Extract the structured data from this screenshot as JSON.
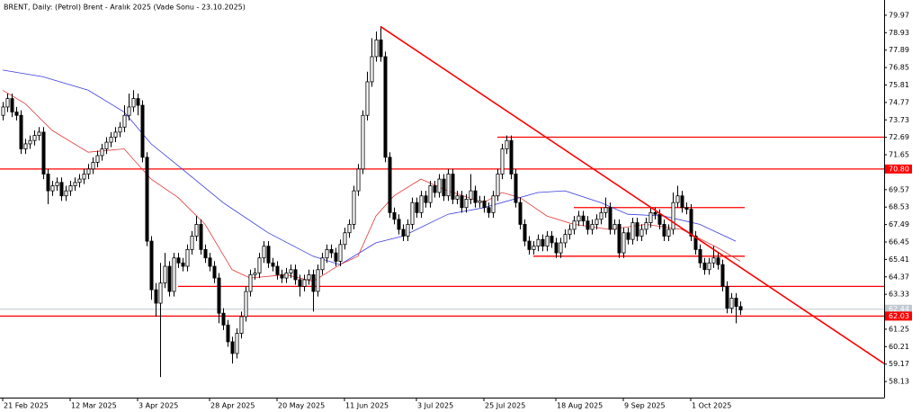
{
  "chart_data": {
    "type": "candlestick",
    "title": "BRENT, Daily:  (Petrol) Brent - Aralık 2025 (Vade Sonu - 23.10.2025)",
    "xlim": [
      -0.6,
      196
    ],
    "ylim": [
      57.17,
      80.61
    ],
    "xticks": [
      {
        "value": 0,
        "label": "21 Feb 2025"
      },
      {
        "value": 15,
        "label": "12 Mar 2025"
      },
      {
        "value": 30,
        "label": "3 Apr 2025"
      },
      {
        "value": 46,
        "label": "28 Apr 2025"
      },
      {
        "value": 61,
        "label": "20 May 2025"
      },
      {
        "value": 76,
        "label": "11 Jun 2025"
      },
      {
        "value": 92,
        "label": "3 Jul 2025"
      },
      {
        "value": 107,
        "label": "25 Jul 2025"
      },
      {
        "value": 123,
        "label": "18 Aug 2025"
      },
      {
        "value": 138,
        "label": "9 Sep 2025"
      },
      {
        "value": 153,
        "label": "1 Oct 2025"
      }
    ],
    "yticks": [
      79.97,
      78.93,
      77.89,
      76.85,
      75.81,
      74.77,
      73.73,
      72.69,
      71.65,
      69.57,
      68.53,
      67.49,
      66.45,
      65.41,
      64.37,
      63.33,
      61.25,
      60.21,
      59.17,
      58.13
    ],
    "up_color": "#ffffff",
    "down_color": "#000000",
    "ohlc": [
      [
        74.0,
        74.8,
        73.7,
        74.5
      ],
      [
        74.5,
        75.3,
        74.2,
        75.0
      ],
      [
        75.0,
        75.3,
        73.9,
        74.2
      ],
      [
        74.2,
        74.5,
        73.7,
        74.0
      ],
      [
        74.0,
        74.3,
        71.7,
        72.0
      ],
      [
        72.0,
        72.6,
        71.7,
        72.3
      ],
      [
        72.3,
        72.8,
        72.0,
        72.5
      ],
      [
        72.5,
        73.1,
        72.2,
        72.8
      ],
      [
        72.8,
        73.3,
        72.5,
        73.0
      ],
      [
        73.0,
        73.3,
        70.2,
        70.5
      ],
      [
        70.5,
        70.8,
        68.7,
        69.5
      ],
      [
        69.5,
        70.1,
        69.2,
        69.8
      ],
      [
        69.8,
        70.3,
        69.5,
        70.0
      ],
      [
        70.0,
        70.3,
        68.9,
        69.2
      ],
      [
        69.2,
        69.8,
        68.9,
        69.5
      ],
      [
        69.5,
        70.1,
        69.2,
        69.8
      ],
      [
        69.8,
        70.3,
        69.5,
        70.0
      ],
      [
        70.0,
        70.5,
        69.7,
        70.2
      ],
      [
        70.2,
        70.8,
        69.9,
        70.5
      ],
      [
        70.5,
        71.1,
        70.2,
        70.8
      ],
      [
        70.8,
        71.5,
        70.5,
        71.2
      ],
      [
        71.2,
        71.9,
        70.9,
        71.6
      ],
      [
        71.6,
        72.3,
        71.3,
        72.0
      ],
      [
        72.0,
        72.7,
        71.7,
        72.4
      ],
      [
        72.4,
        73.0,
        72.1,
        72.7
      ],
      [
        72.7,
        73.3,
        72.4,
        73.0
      ],
      [
        73.0,
        73.6,
        72.7,
        73.3
      ],
      [
        73.3,
        74.6,
        73.0,
        74.0
      ],
      [
        74.0,
        75.3,
        73.7,
        74.5
      ],
      [
        74.5,
        75.5,
        74.2,
        75.0
      ],
      [
        75.0,
        75.3,
        74.0,
        74.6
      ],
      [
        74.6,
        74.9,
        71.2,
        71.5
      ],
      [
        71.5,
        71.8,
        66.2,
        66.5
      ],
      [
        66.5,
        66.8,
        63.0,
        63.6
      ],
      [
        63.6,
        64.0,
        62.0,
        62.8
      ],
      [
        62.8,
        65.2,
        58.4,
        64.0
      ],
      [
        64.0,
        65.8,
        63.7,
        65.0
      ],
      [
        65.0,
        65.3,
        63.2,
        63.5
      ],
      [
        63.5,
        65.8,
        63.2,
        65.5
      ],
      [
        65.5,
        65.8,
        64.9,
        65.2
      ],
      [
        65.2,
        65.5,
        64.7,
        65.0
      ],
      [
        65.0,
        66.3,
        64.7,
        66.0
      ],
      [
        66.0,
        67.1,
        65.7,
        66.8
      ],
      [
        66.8,
        68.0,
        66.5,
        67.5
      ],
      [
        67.5,
        67.8,
        65.7,
        66.0
      ],
      [
        66.0,
        66.3,
        65.2,
        65.5
      ],
      [
        65.5,
        65.8,
        64.7,
        65.0
      ],
      [
        65.0,
        65.3,
        64.0,
        64.3
      ],
      [
        64.3,
        64.6,
        61.6,
        62.2
      ],
      [
        62.2,
        62.5,
        61.2,
        61.5
      ],
      [
        61.5,
        61.8,
        60.2,
        60.5
      ],
      [
        60.5,
        60.8,
        59.2,
        59.8
      ],
      [
        59.8,
        61.3,
        59.5,
        61.0
      ],
      [
        61.0,
        62.3,
        60.7,
        62.0
      ],
      [
        62.0,
        63.8,
        61.7,
        63.5
      ],
      [
        63.5,
        64.8,
        63.2,
        64.5
      ],
      [
        64.5,
        64.9,
        64.2,
        64.6
      ],
      [
        64.6,
        65.8,
        64.3,
        65.5
      ],
      [
        65.5,
        66.5,
        65.2,
        66.2
      ],
      [
        66.2,
        66.5,
        64.9,
        65.2
      ],
      [
        65.2,
        65.5,
        64.7,
        65.0
      ],
      [
        65.0,
        65.3,
        64.2,
        64.5
      ],
      [
        64.5,
        64.8,
        64.0,
        64.3
      ],
      [
        64.3,
        64.9,
        64.0,
        64.6
      ],
      [
        64.6,
        65.1,
        64.3,
        64.8
      ],
      [
        64.8,
        65.1,
        63.9,
        64.2
      ],
      [
        64.2,
        64.5,
        63.2,
        63.8
      ],
      [
        63.8,
        64.5,
        63.5,
        64.2
      ],
      [
        64.2,
        64.8,
        63.9,
        64.5
      ],
      [
        64.5,
        64.8,
        62.3,
        63.5
      ],
      [
        63.5,
        65.1,
        63.2,
        64.8
      ],
      [
        64.8,
        65.8,
        64.5,
        65.5
      ],
      [
        65.5,
        66.3,
        65.2,
        66.0
      ],
      [
        66.0,
        66.3,
        65.5,
        65.8
      ],
      [
        65.8,
        66.1,
        65.0,
        65.3
      ],
      [
        65.3,
        66.6,
        65.0,
        66.3
      ],
      [
        66.3,
        67.3,
        66.0,
        67.0
      ],
      [
        67.0,
        67.8,
        66.7,
        67.5
      ],
      [
        67.5,
        69.8,
        67.2,
        69.5
      ],
      [
        69.5,
        71.1,
        69.2,
        70.8
      ],
      [
        70.8,
        74.3,
        70.5,
        74.0
      ],
      [
        74.0,
        76.6,
        73.7,
        76.0
      ],
      [
        76.0,
        78.6,
        75.7,
        77.5
      ],
      [
        77.5,
        79.0,
        77.2,
        78.5
      ],
      [
        78.5,
        79.3,
        77.2,
        77.5
      ],
      [
        77.5,
        77.8,
        71.2,
        71.5
      ],
      [
        71.5,
        71.8,
        67.9,
        68.2
      ],
      [
        68.2,
        68.5,
        67.5,
        67.8
      ],
      [
        67.8,
        68.1,
        66.9,
        67.2
      ],
      [
        67.2,
        67.5,
        66.5,
        66.8
      ],
      [
        66.8,
        67.8,
        66.5,
        67.5
      ],
      [
        67.5,
        69.1,
        67.2,
        68.8
      ],
      [
        68.8,
        69.1,
        67.9,
        68.2
      ],
      [
        68.2,
        69.5,
        67.9,
        69.2
      ],
      [
        69.2,
        69.5,
        68.5,
        68.8
      ],
      [
        68.8,
        70.1,
        68.5,
        69.8
      ],
      [
        69.8,
        70.1,
        69.1,
        69.4
      ],
      [
        69.4,
        70.5,
        69.1,
        70.2
      ],
      [
        70.2,
        70.5,
        68.9,
        69.2
      ],
      [
        69.2,
        70.8,
        68.9,
        70.5
      ],
      [
        70.5,
        70.8,
        68.7,
        69.0
      ],
      [
        69.0,
        69.5,
        68.7,
        69.2
      ],
      [
        69.2,
        69.5,
        68.2,
        68.5
      ],
      [
        68.5,
        69.3,
        68.2,
        69.0
      ],
      [
        69.0,
        70.5,
        68.7,
        69.5
      ],
      [
        69.5,
        69.8,
        68.5,
        68.8
      ],
      [
        68.8,
        69.2,
        68.5,
        68.9
      ],
      [
        68.9,
        69.2,
        68.2,
        68.5
      ],
      [
        68.5,
        68.8,
        67.9,
        68.2
      ],
      [
        68.2,
        69.5,
        67.9,
        69.2
      ],
      [
        69.2,
        70.8,
        68.9,
        70.5
      ],
      [
        70.5,
        72.3,
        70.2,
        72.0
      ],
      [
        72.0,
        72.8,
        71.7,
        72.5
      ],
      [
        72.5,
        72.8,
        70.2,
        70.5
      ],
      [
        70.5,
        70.8,
        68.5,
        68.8
      ],
      [
        68.8,
        69.1,
        67.2,
        67.5
      ],
      [
        67.5,
        67.8,
        66.2,
        66.5
      ],
      [
        66.5,
        66.8,
        65.7,
        66.0
      ],
      [
        66.0,
        66.5,
        65.7,
        66.2
      ],
      [
        66.2,
        66.9,
        65.9,
        66.6
      ],
      [
        66.6,
        66.9,
        65.9,
        66.2
      ],
      [
        66.2,
        67.1,
        65.9,
        66.8
      ],
      [
        66.8,
        67.1,
        66.1,
        66.4
      ],
      [
        66.4,
        66.7,
        65.5,
        65.8
      ],
      [
        65.8,
        66.7,
        65.5,
        66.4
      ],
      [
        66.4,
        67.2,
        66.1,
        66.9
      ],
      [
        66.9,
        67.5,
        66.6,
        67.2
      ],
      [
        67.2,
        68.0,
        66.9,
        67.7
      ],
      [
        67.7,
        68.3,
        67.4,
        68.0
      ],
      [
        68.0,
        68.3,
        67.4,
        67.7
      ],
      [
        67.7,
        68.0,
        66.9,
        67.2
      ],
      [
        67.2,
        67.8,
        66.9,
        67.5
      ],
      [
        67.5,
        68.1,
        67.2,
        67.8
      ],
      [
        67.8,
        68.5,
        67.5,
        68.2
      ],
      [
        68.2,
        69.1,
        67.9,
        68.5
      ],
      [
        68.5,
        68.8,
        66.9,
        67.2
      ],
      [
        67.2,
        67.8,
        66.9,
        67.5
      ],
      [
        67.5,
        67.8,
        65.5,
        65.8
      ],
      [
        65.8,
        67.3,
        65.5,
        67.0
      ],
      [
        67.0,
        67.3,
        66.3,
        66.6
      ],
      [
        66.6,
        67.9,
        66.3,
        67.6
      ],
      [
        67.6,
        67.9,
        66.5,
        66.8
      ],
      [
        66.8,
        67.5,
        66.5,
        67.2
      ],
      [
        67.2,
        67.9,
        66.9,
        67.6
      ],
      [
        67.6,
        68.5,
        67.3,
        68.2
      ],
      [
        68.2,
        68.5,
        67.8,
        68.1
      ],
      [
        68.1,
        68.4,
        67.2,
        67.5
      ],
      [
        67.5,
        67.8,
        66.5,
        66.8
      ],
      [
        66.8,
        67.5,
        66.5,
        67.2
      ],
      [
        67.2,
        69.4,
        66.9,
        68.8
      ],
      [
        68.8,
        69.8,
        68.5,
        69.2
      ],
      [
        69.2,
        69.5,
        68.2,
        68.5
      ],
      [
        68.5,
        68.8,
        68.1,
        68.4
      ],
      [
        68.4,
        68.7,
        66.5,
        66.8
      ],
      [
        66.8,
        67.1,
        65.7,
        66.0
      ],
      [
        66.0,
        66.3,
        64.9,
        65.2
      ],
      [
        65.2,
        65.5,
        64.5,
        64.8
      ],
      [
        64.8,
        65.5,
        64.5,
        65.2
      ],
      [
        65.2,
        66.2,
        64.9,
        65.5
      ],
      [
        65.5,
        65.8,
        64.8,
        65.1
      ],
      [
        65.1,
        65.4,
        63.5,
        63.8
      ],
      [
        63.8,
        64.1,
        62.2,
        62.5
      ],
      [
        62.5,
        63.4,
        62.2,
        63.1
      ],
      [
        63.1,
        63.4,
        61.6,
        62.6
      ],
      [
        62.6,
        62.9,
        62.1,
        62.4
      ]
    ],
    "moving_averages": [
      {
        "color": "#3a3ae0",
        "x": [
          0,
          9,
          19,
          27,
          33,
          39,
          49,
          59,
          69,
          75,
          83,
          89,
          99,
          107,
          119,
          125,
          133,
          139,
          147,
          155,
          163
        ],
        "values": [
          76.7,
          76.3,
          75.5,
          74.2,
          72.3,
          71.0,
          68.8,
          67.0,
          65.6,
          65.1,
          66.4,
          66.8,
          68.1,
          68.5,
          69.4,
          69.5,
          68.8,
          68.1,
          68.0,
          67.5,
          66.5
        ]
      },
      {
        "color": "#e03a3a",
        "x": [
          0,
          5,
          11,
          19,
          27,
          33,
          39,
          45,
          51,
          55,
          63,
          69,
          75,
          79,
          83,
          87,
          93,
          99,
          107,
          111,
          115,
          121,
          127,
          135,
          143,
          151,
          159,
          164
        ],
        "values": [
          75.5,
          74.7,
          73.1,
          71.8,
          72.0,
          70.2,
          69.1,
          67.5,
          64.8,
          64.3,
          64.5,
          64.1,
          65.1,
          65.6,
          68.0,
          69.2,
          70.2,
          69.5,
          68.8,
          69.4,
          69.1,
          68.0,
          67.5,
          67.2,
          67.5,
          67.2,
          66.1,
          65.3
        ]
      }
    ],
    "hlines": [
      {
        "value": 72.7,
        "from": 110,
        "to": 196
      },
      {
        "value": 70.8,
        "from": -0.6,
        "to": 196
      },
      {
        "value": 68.5,
        "from": 127,
        "to": 165
      },
      {
        "value": 65.6,
        "from": 118,
        "to": 165
      },
      {
        "value": 63.8,
        "from": 39,
        "to": 196
      },
      {
        "value": 62.03,
        "from": -0.6,
        "to": 196
      }
    ],
    "line_color": "#ff0000",
    "trendline": {
      "x": [
        84,
        196
      ],
      "values": [
        79.3,
        59.2
      ]
    },
    "bid_line": {
      "value": 62.44,
      "color": "#c0c8d0"
    },
    "price_labels": [
      {
        "value": 70.8,
        "label": "70.80",
        "color": "#ff0000"
      },
      {
        "value": 62.44,
        "label": "62.44",
        "color": "#c0c8d0"
      },
      {
        "value": 62.03,
        "label": "62.03",
        "color": "#ff0000"
      }
    ]
  }
}
